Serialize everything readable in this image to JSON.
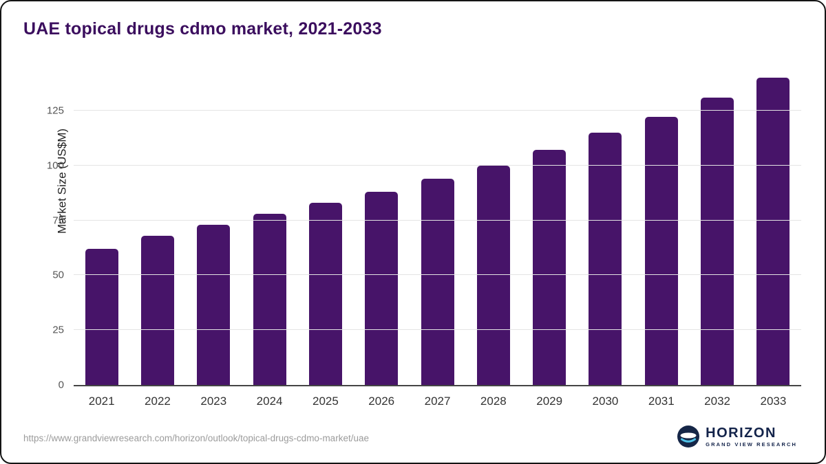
{
  "page": {
    "source_url": "https://www.grandviewresearch.com/horizon/outlook/topical-drugs-cdmo-market/uae"
  },
  "branding": {
    "name": "HORIZON",
    "subtitle": "GRAND VIEW RESEARCH",
    "logo_icon": "horizon-globe-icon",
    "navy": "#152647",
    "light_blue": "#4fc2e8"
  },
  "chart_data": {
    "type": "bar",
    "title": "UAE topical drugs cdmo market, 2021-2033",
    "categories": [
      "2021",
      "2022",
      "2023",
      "2024",
      "2025",
      "2026",
      "2027",
      "2028",
      "2029",
      "2030",
      "2031",
      "2032",
      "2033"
    ],
    "values": [
      62,
      68,
      73,
      78,
      83,
      88,
      94,
      100,
      107,
      115,
      122,
      131,
      140
    ],
    "xlabel": "",
    "ylabel": "Market Size (US$M)",
    "ylim": [
      0,
      145
    ],
    "yticks": [
      0,
      25,
      50,
      75,
      100,
      125
    ],
    "grid": true,
    "legend_position": "none",
    "bar_color": "#471469",
    "title_color": "#3b0e5e"
  }
}
